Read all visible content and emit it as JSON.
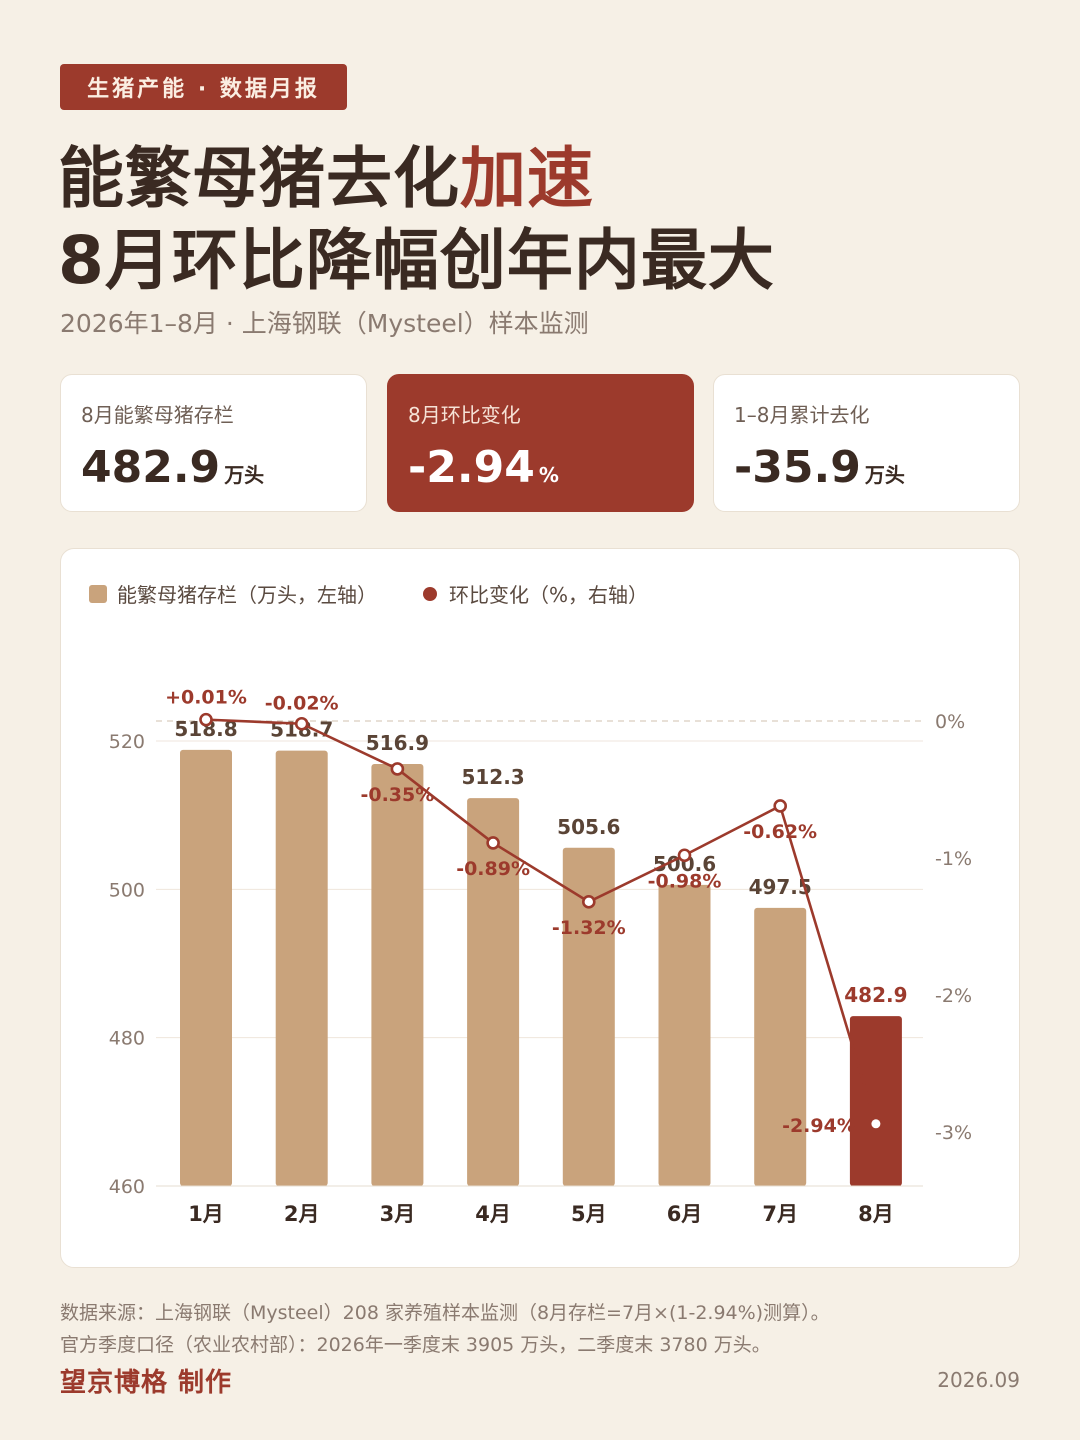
{
  "header": {
    "tag": "生猪产能 · 数据月报",
    "title_line1_a": "能繁母猪去化",
    "title_line1_b": "加速",
    "title_line2": "8月环比降幅创年内最大",
    "subtitle": "2026年1–8月 · 上海钢联（Mysteel）样本监测"
  },
  "cards": [
    {
      "label": "8月能繁母猪存栏",
      "value": "482.9",
      "unit": "万头"
    },
    {
      "label": "8月环比变化",
      "value": "-2.94",
      "unit": "%"
    },
    {
      "label": "1–8月累计去化",
      "value": "-35.9",
      "unit": "万头"
    }
  ],
  "legend": {
    "bar": "能繁母猪存栏（万头，左轴）",
    "line": "环比变化（%，右轴）"
  },
  "chart_data": {
    "type": "bar",
    "categories": [
      "1月",
      "2月",
      "3月",
      "4月",
      "5月",
      "6月",
      "7月",
      "8月"
    ],
    "series": [
      {
        "name": "能繁母猪存栏（万头，左轴）",
        "type": "bar",
        "axis": "left",
        "values": [
          518.8,
          518.7,
          516.9,
          512.3,
          505.6,
          500.6,
          497.5,
          482.9
        ],
        "labels": [
          "518.8",
          "518.7",
          "516.9",
          "512.3",
          "505.6",
          "500.6",
          "497.5",
          "482.9"
        ]
      },
      {
        "name": "环比变化（%，右轴）",
        "type": "line",
        "axis": "right",
        "values": [
          0.01,
          -0.02,
          -0.35,
          -0.89,
          -1.32,
          -0.98,
          -0.62,
          -2.94
        ],
        "labels": [
          "+0.01%",
          "-0.02%",
          "-0.35%",
          "-0.89%",
          "-1.32%",
          "-0.98%",
          "-0.62%",
          "-2.94%"
        ]
      }
    ],
    "left_axis": {
      "ticks": [
        "460",
        "480",
        "500",
        "520"
      ],
      "ylim": [
        460,
        520
      ]
    },
    "right_axis": {
      "ticks": [
        "0%",
        "-1%",
        "-2%",
        "-3%"
      ],
      "ylim": [
        -3,
        0
      ]
    },
    "highlight_category": "8月",
    "grid": true,
    "legend_position": "top-left"
  },
  "footer": {
    "note1": "数据来源：上海钢联（Mysteel）208 家养殖样本监测（8月存栏=7月×(1-2.94%)测算）。",
    "note2": "官方季度口径（农业农村部）：2026年一季度末 3905 万头，二季度末 3780 万头。",
    "brand": "望京博格 制作",
    "date": "2026.09"
  },
  "colors": {
    "bar": "#c9a37c",
    "bar_highlight": "#9c3a2c",
    "line": "#9c3a2c",
    "accent": "#9c3a2c",
    "background": "#f6f0e6"
  }
}
